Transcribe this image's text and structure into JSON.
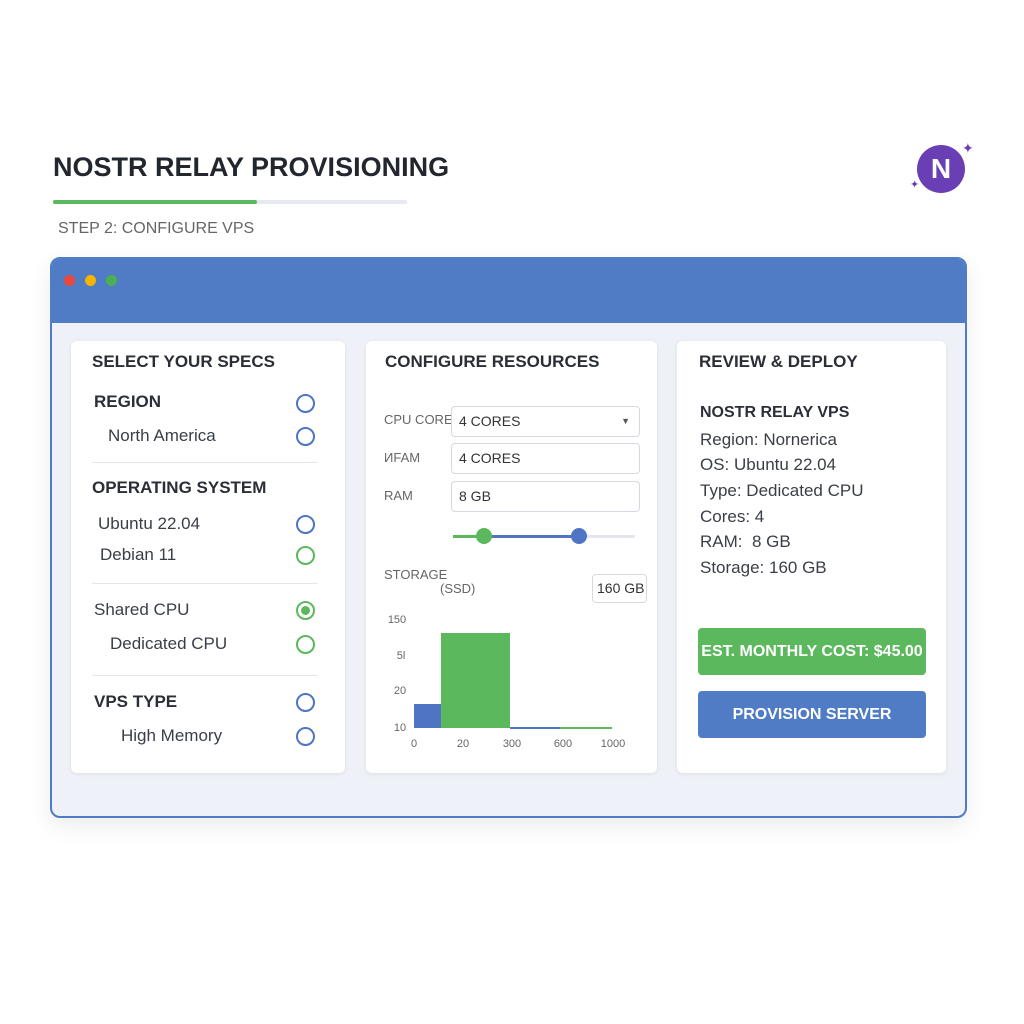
{
  "header": {
    "title": "NOSTR RELAY PROVISIONING",
    "step": "STEP 2: CONFIGURE VPS",
    "logo": "N"
  },
  "specs": {
    "title": "SELECT YOUR SPECS",
    "region": {
      "label": "REGION",
      "options": [
        "North America"
      ]
    },
    "os": {
      "label": "OPERATING SYSTEM",
      "options": [
        "Ubuntu 22.04",
        "Debian 11"
      ]
    },
    "cpu": {
      "options": [
        "Shared CPU",
        "Dedicated CPU"
      ]
    },
    "vps_type": {
      "label": "VPS TYPE",
      "options": [
        "High Memory"
      ]
    }
  },
  "resources": {
    "title": "CONFIGURE RESOURCES",
    "fields": [
      {
        "label": "CPU CORES",
        "value": "4 CORES"
      },
      {
        "label": "ИFAM",
        "value": "4 CORES"
      },
      {
        "label": "RAM",
        "value": "8 GB"
      }
    ],
    "storage": {
      "label": "STORAGE",
      "sublabel": "(SSD)",
      "value": "160 GB",
      "chart": {
        "y_labels": [
          "150",
          "5l",
          "20",
          "10"
        ],
        "x_labels": [
          "0",
          "20",
          "300",
          "600",
          "1000"
        ]
      }
    }
  },
  "review": {
    "title": "REVIEW & DEPLOY",
    "name": "NOSTR RELAY VPS",
    "lines": [
      "Region: Nornerica",
      "OS: Ubuntu 22.04",
      "Type: Dedicated CPU",
      "Cores: 4",
      "RAM:  8 GB",
      "Storage: 160 GB"
    ],
    "cost": "EST. MONTHLY COST: $45.00",
    "button": "PROVISION SERVER"
  }
}
